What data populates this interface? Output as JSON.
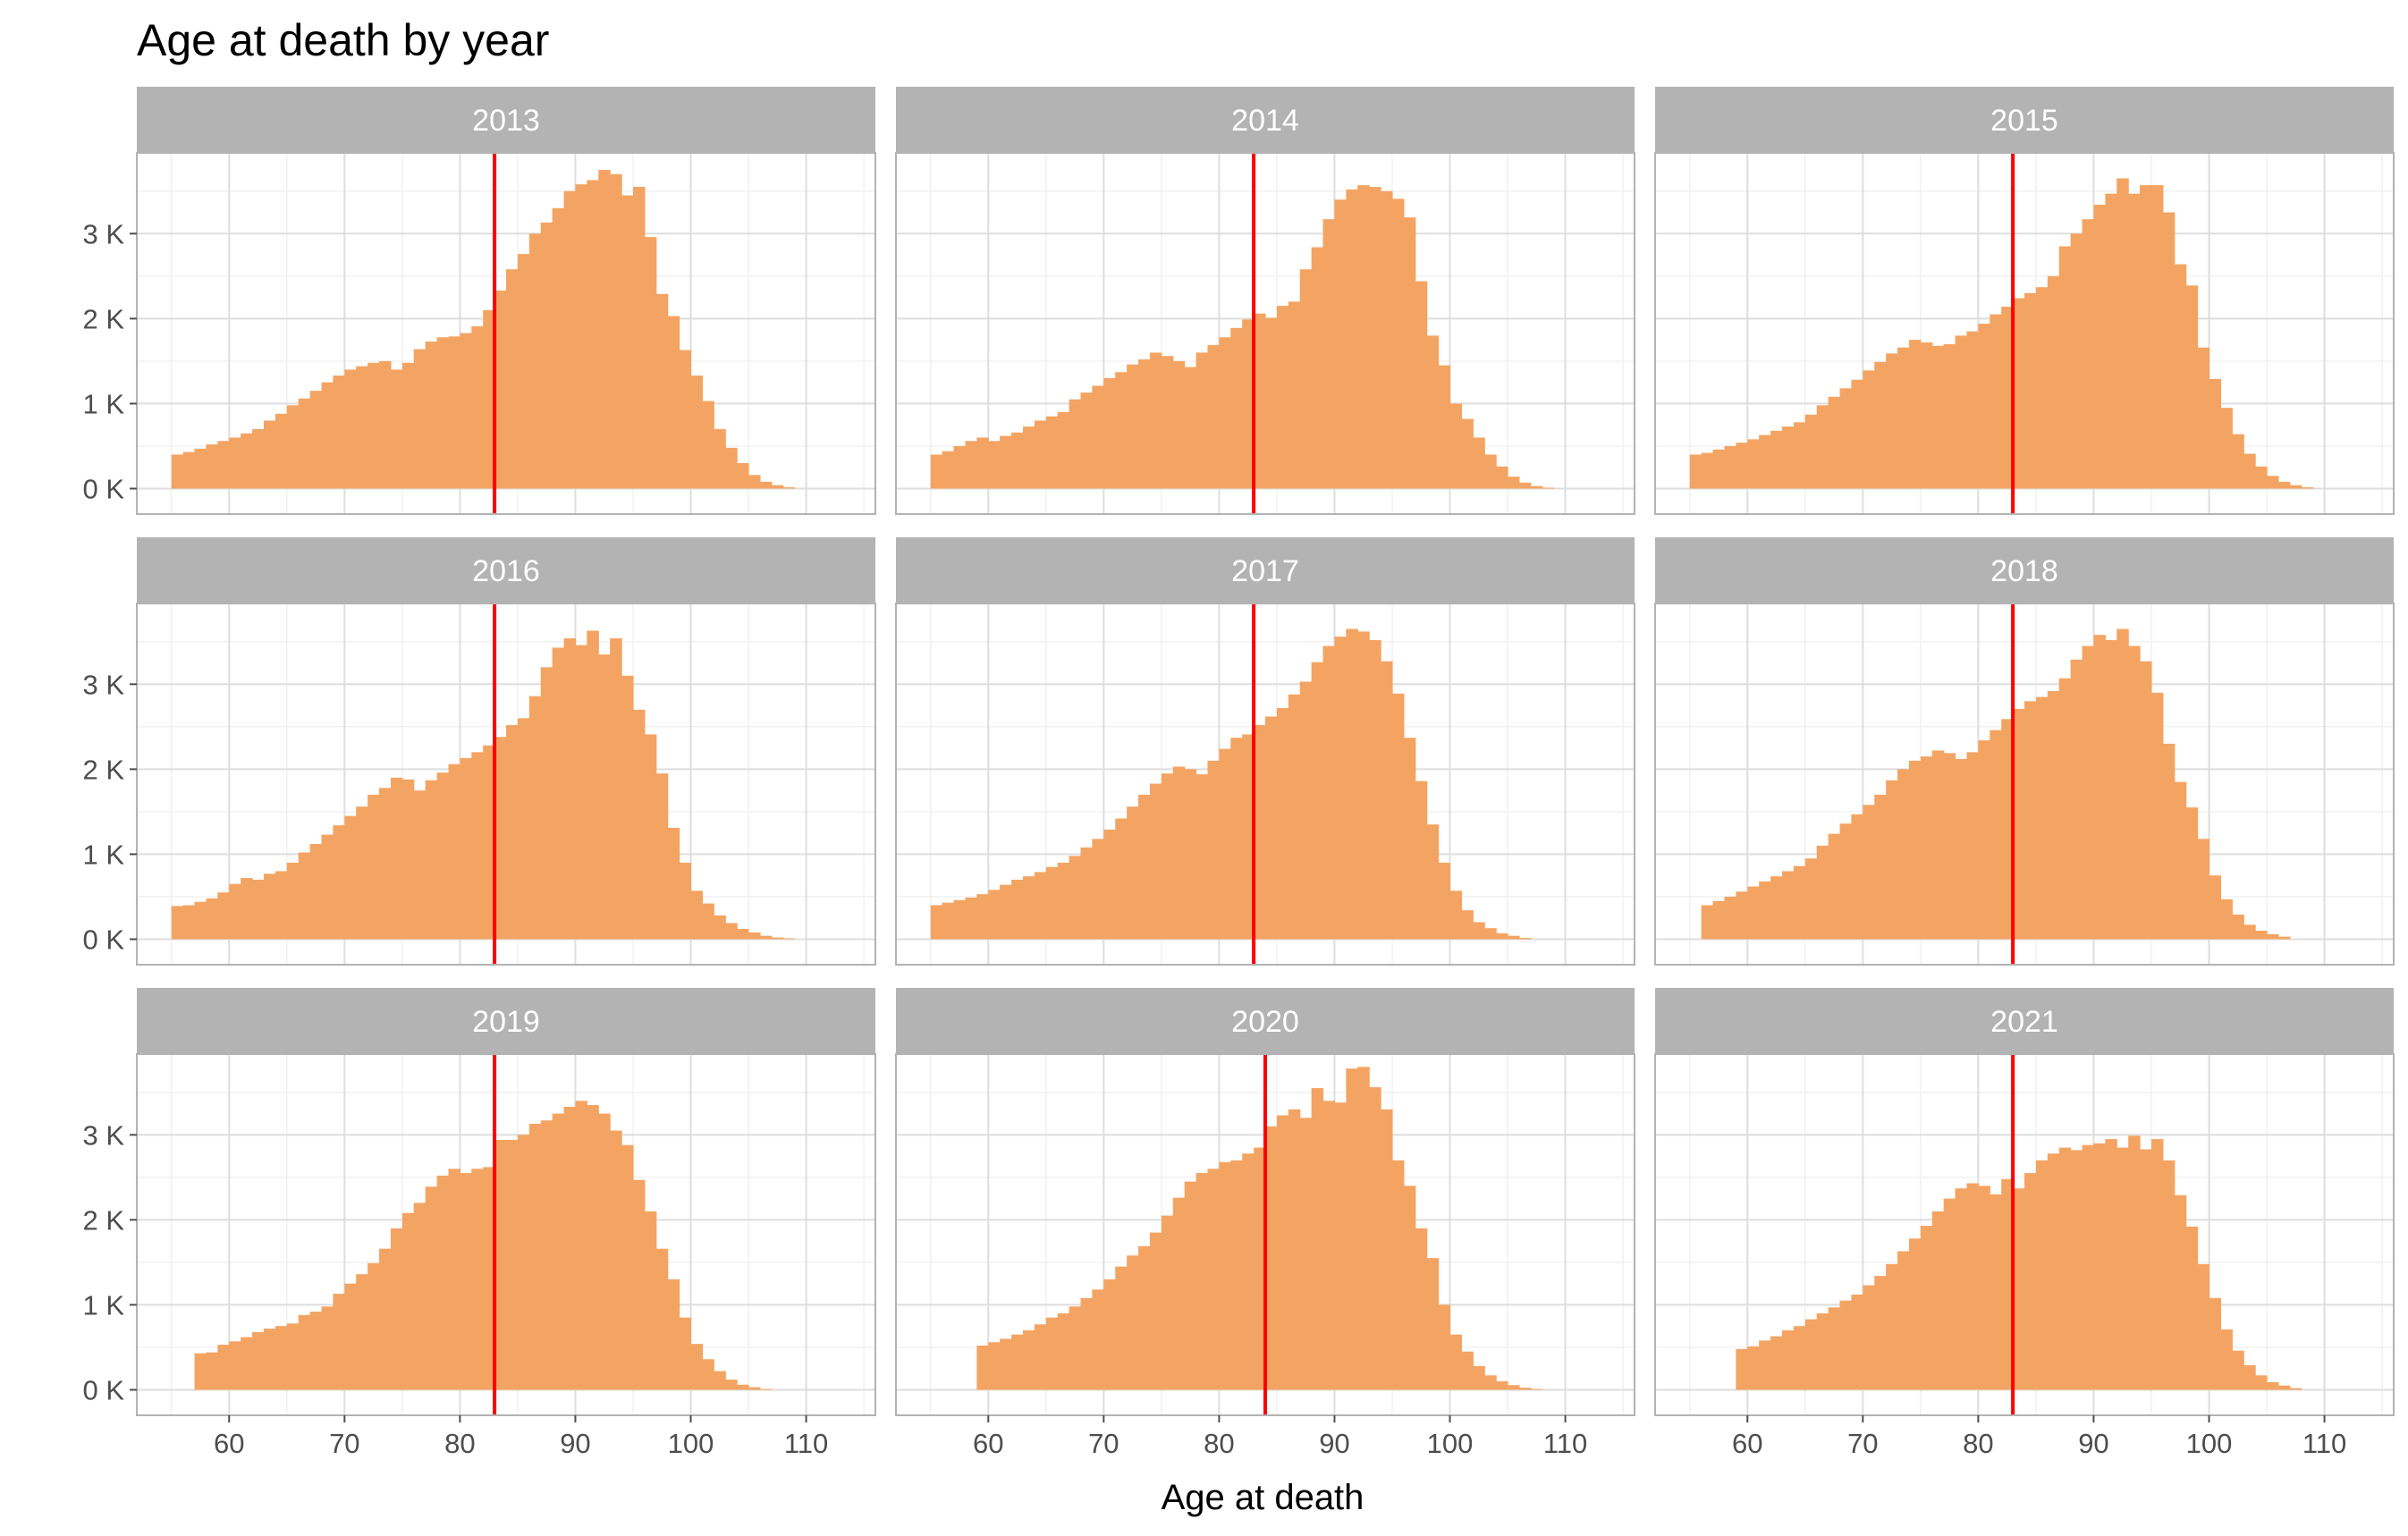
{
  "chart_data": {
    "type": "histogram",
    "title": "Age at death by year",
    "xlabel": "Age at death",
    "ylabel": "",
    "bin_width": 1,
    "xlim": [
      52,
      116
    ],
    "ylim": [
      -300,
      3950
    ],
    "x_ticks": [
      60,
      70,
      80,
      90,
      100,
      110
    ],
    "y_ticks": [
      0,
      1000,
      2000,
      3000
    ],
    "y_tick_labels": [
      "0 K",
      "1 K",
      "2 K",
      "3 K"
    ],
    "bar_color": "#F4A462",
    "median_line_color": "#FF0000",
    "grid": true,
    "facets": [
      {
        "label": "2013",
        "median": 83,
        "x_start": 55,
        "values": [
          400,
          430,
          470,
          520,
          560,
          600,
          650,
          700,
          800,
          880,
          980,
          1060,
          1150,
          1250,
          1330,
          1400,
          1440,
          1480,
          1500,
          1400,
          1480,
          1640,
          1730,
          1780,
          1790,
          1830,
          1910,
          2100,
          2330,
          2580,
          2760,
          3000,
          3130,
          3300,
          3500,
          3580,
          3630,
          3750,
          3700,
          3450,
          3550,
          2960,
          2290,
          2030,
          1630,
          1330,
          1030,
          700,
          480,
          300,
          160,
          80,
          40,
          15
        ]
      },
      {
        "label": "2014",
        "median": 83,
        "x_start": 55,
        "values": [
          400,
          440,
          500,
          560,
          600,
          560,
          620,
          660,
          730,
          800,
          850,
          900,
          1050,
          1130,
          1210,
          1300,
          1370,
          1460,
          1520,
          1600,
          1560,
          1500,
          1430,
          1600,
          1690,
          1780,
          1890,
          1990,
          2060,
          2010,
          2150,
          2200,
          2580,
          2840,
          3170,
          3400,
          3520,
          3570,
          3550,
          3500,
          3410,
          3190,
          2440,
          1800,
          1450,
          1000,
          820,
          600,
          400,
          260,
          140,
          70,
          30,
          10
        ]
      },
      {
        "label": "2015",
        "median": 83,
        "x_start": 55,
        "values": [
          400,
          420,
          460,
          500,
          540,
          580,
          630,
          680,
          730,
          780,
          870,
          980,
          1080,
          1180,
          1280,
          1390,
          1490,
          1590,
          1660,
          1750,
          1720,
          1680,
          1700,
          1800,
          1850,
          1940,
          2050,
          2140,
          2240,
          2300,
          2370,
          2500,
          2850,
          3000,
          3170,
          3340,
          3470,
          3650,
          3470,
          3570,
          3570,
          3250,
          2640,
          2390,
          1660,
          1290,
          950,
          640,
          410,
          260,
          150,
          80,
          40,
          15
        ]
      },
      {
        "label": "2016",
        "median": 83,
        "x_start": 55,
        "values": [
          390,
          400,
          440,
          480,
          550,
          650,
          720,
          700,
          770,
          800,
          900,
          1020,
          1120,
          1230,
          1340,
          1450,
          1560,
          1700,
          1780,
          1900,
          1880,
          1750,
          1870,
          1960,
          2060,
          2130,
          2200,
          2280,
          2380,
          2520,
          2600,
          2860,
          3200,
          3430,
          3540,
          3460,
          3630,
          3350,
          3540,
          3100,
          2700,
          2410,
          1950,
          1310,
          900,
          570,
          420,
          280,
          190,
          120,
          80,
          40,
          20,
          10
        ]
      },
      {
        "label": "2017",
        "median": 83,
        "x_start": 55,
        "values": [
          400,
          430,
          460,
          490,
          530,
          580,
          640,
          700,
          740,
          790,
          850,
          900,
          980,
          1080,
          1180,
          1290,
          1420,
          1560,
          1700,
          1830,
          1950,
          2030,
          2000,
          1940,
          2100,
          2240,
          2370,
          2410,
          2520,
          2620,
          2720,
          2880,
          3030,
          3260,
          3450,
          3560,
          3650,
          3620,
          3520,
          3270,
          2890,
          2370,
          1860,
          1350,
          900,
          570,
          340,
          200,
          130,
          70,
          40,
          15
        ]
      },
      {
        "label": "2018",
        "median": 83,
        "x_start": 56,
        "values": [
          400,
          450,
          500,
          560,
          620,
          680,
          740,
          800,
          860,
          950,
          1100,
          1240,
          1360,
          1470,
          1580,
          1700,
          1870,
          2000,
          2100,
          2150,
          2220,
          2190,
          2120,
          2200,
          2340,
          2460,
          2590,
          2710,
          2800,
          2850,
          2920,
          3070,
          3290,
          3450,
          3580,
          3520,
          3650,
          3450,
          3270,
          2900,
          2300,
          1850,
          1550,
          1180,
          750,
          470,
          290,
          170,
          100,
          60,
          30
        ]
      },
      {
        "label": "2019",
        "median": 83,
        "x_start": 57,
        "values": [
          430,
          440,
          530,
          570,
          620,
          680,
          720,
          750,
          780,
          880,
          920,
          980,
          1130,
          1250,
          1360,
          1490,
          1660,
          1900,
          2080,
          2200,
          2390,
          2520,
          2600,
          2550,
          2600,
          2620,
          2940,
          2940,
          3000,
          3130,
          3170,
          3250,
          3330,
          3400,
          3350,
          3250,
          3050,
          2880,
          2470,
          2100,
          1660,
          1300,
          850,
          540,
          360,
          220,
          120,
          60,
          30,
          10
        ]
      },
      {
        "label": "2020",
        "median": 84,
        "x_start": 59,
        "values": [
          520,
          560,
          600,
          650,
          700,
          770,
          850,
          900,
          980,
          1080,
          1180,
          1300,
          1450,
          1580,
          1690,
          1850,
          2050,
          2260,
          2450,
          2550,
          2600,
          2680,
          2700,
          2780,
          2850,
          3100,
          3230,
          3300,
          3200,
          3550,
          3400,
          3380,
          3780,
          3800,
          3560,
          3300,
          2700,
          2400,
          1900,
          1550,
          1000,
          650,
          450,
          280,
          170,
          100,
          55,
          25,
          10
        ]
      },
      {
        "label": "2021",
        "median": 83,
        "x_start": 59,
        "values": [
          480,
          510,
          580,
          630,
          700,
          750,
          830,
          900,
          970,
          1050,
          1120,
          1230,
          1340,
          1480,
          1630,
          1780,
          1930,
          2100,
          2250,
          2370,
          2430,
          2400,
          2300,
          2480,
          2370,
          2550,
          2700,
          2780,
          2850,
          2820,
          2880,
          2900,
          2950,
          2850,
          2990,
          2830,
          2950,
          2700,
          2290,
          1920,
          1480,
          1080,
          710,
          460,
          290,
          170,
          90,
          50,
          20
        ]
      }
    ]
  }
}
